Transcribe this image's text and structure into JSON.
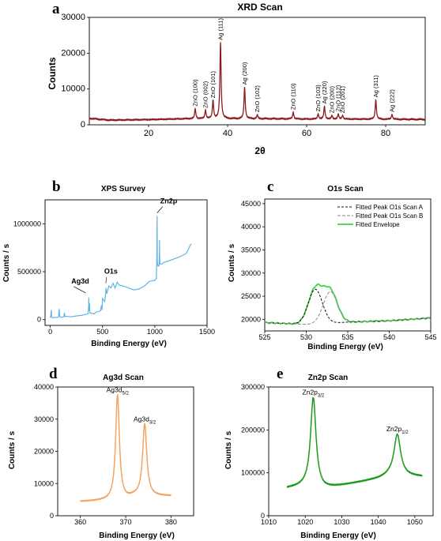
{
  "chart_data": [
    {
      "id": "xrd",
      "panel_letter": "a",
      "type": "line",
      "title": "XRD Scan",
      "xlabel": "2θ",
      "ylabel": "Counts",
      "xlim": [
        5,
        90
      ],
      "ylim": [
        0,
        30000
      ],
      "xticks": [
        20,
        40,
        60,
        80
      ],
      "yticks": [
        0,
        10000,
        20000,
        30000
      ],
      "color": "#8b1a1a",
      "baseline": {
        "x": [
          5,
          10,
          20,
          30,
          40,
          50,
          60,
          70,
          80,
          90
        ],
        "y": [
          1800,
          1300,
          1450,
          1700,
          1700,
          1700,
          1600,
          1600,
          1550,
          1500
        ]
      },
      "peaks": [
        {
          "x": 31.8,
          "y": 4500,
          "label": "ZnO (100)"
        },
        {
          "x": 34.4,
          "y": 4000,
          "label": "ZnO (002)"
        },
        {
          "x": 36.3,
          "y": 6800,
          "label": "ZnO (101)"
        },
        {
          "x": 38.2,
          "y": 23000,
          "label": "Ag (111)"
        },
        {
          "x": 44.3,
          "y": 10500,
          "label": "Ag (200)"
        },
        {
          "x": 47.5,
          "y": 2800,
          "label": "ZnO (102)"
        },
        {
          "x": 56.6,
          "y": 3500,
          "label": "ZnO (110)"
        },
        {
          "x": 62.9,
          "y": 3000,
          "label": "ZnO (103)"
        },
        {
          "x": 64.5,
          "y": 5200,
          "label": "Ag (220)"
        },
        {
          "x": 66.4,
          "y": 2600,
          "label": "ZnO (200)"
        },
        {
          "x": 68.0,
          "y": 3000,
          "label": "ZnO (112)"
        },
        {
          "x": 69.1,
          "y": 2600,
          "label": "ZnO (201)"
        },
        {
          "x": 77.5,
          "y": 7000,
          "label": "Ag (311)"
        },
        {
          "x": 81.6,
          "y": 2900,
          "label": "Ag (222)"
        }
      ]
    },
    {
      "id": "xps",
      "panel_letter": "b",
      "type": "line",
      "title": "XPS Survey",
      "xlabel": "Binding Energy (eV)",
      "ylabel": "Counts / s",
      "xlim": [
        -50,
        1500
      ],
      "ylim": [
        -60000,
        1250000
      ],
      "xticks": [
        0,
        500,
        1000,
        1500
      ],
      "yticks": [
        0,
        500000,
        1000000
      ],
      "color": "#5fb4e6",
      "points": {
        "x": [
          0,
          5,
          10,
          12,
          14,
          20,
          80,
          85,
          90,
          100,
          130,
          135,
          140,
          200,
          260,
          300,
          360,
          367,
          368,
          370,
          374,
          375,
          378,
          420,
          440,
          480,
          490,
          495,
          500,
          520,
          531,
          533,
          540,
          560,
          580,
          600,
          620,
          640,
          660,
          700,
          750,
          800,
          850,
          900,
          950,
          1000,
          1015,
          1020,
          1022,
          1024,
          1030,
          1040,
          1044,
          1045,
          1047,
          1050,
          1070,
          1090,
          1100,
          1150,
          1200,
          1250,
          1300,
          1320,
          1340,
          1350
        ],
        "y": [
          20000,
          40000,
          100000,
          50000,
          20000,
          20000,
          25000,
          110000,
          40000,
          25000,
          30000,
          70000,
          35000,
          30000,
          40000,
          45000,
          60000,
          130000,
          230000,
          120000,
          90000,
          170000,
          70000,
          60000,
          80000,
          90000,
          150000,
          100000,
          220000,
          190000,
          280000,
          330000,
          270000,
          350000,
          330000,
          380000,
          330000,
          390000,
          360000,
          350000,
          330000,
          310000,
          320000,
          350000,
          400000,
          410000,
          430000,
          700000,
          1080000,
          600000,
          560000,
          560000,
          680000,
          830000,
          620000,
          580000,
          580000,
          600000,
          600000,
          620000,
          640000,
          660000,
          690000,
          730000,
          780000,
          790000
        ]
      },
      "annotations": [
        {
          "text": "Zn2p",
          "x": 1022,
          "y": 1080000
        },
        {
          "text": "O1s",
          "x": 531,
          "y": 330000
        },
        {
          "text": "Ag3d",
          "x": 368,
          "y": 230000
        }
      ]
    },
    {
      "id": "o1s",
      "panel_letter": "c",
      "type": "line",
      "title": "O1s Scan",
      "xlabel": "Binding Energy (eV)",
      "ylabel": "Counts / s",
      "xlim": [
        525,
        545
      ],
      "ylim": [
        17500,
        46000
      ],
      "xticks": [
        525,
        530,
        535,
        540,
        545
      ],
      "yticks": [
        20000,
        25000,
        30000,
        35000,
        40000,
        45000
      ],
      "background": {
        "x": [
          525,
          530,
          535,
          540,
          545
        ],
        "y": [
          19300,
          18900,
          19400,
          19700,
          20300
        ]
      },
      "series": [
        {
          "name": "Fitted Peak O1s Scan A",
          "color": "#111111",
          "dash": "3,2",
          "peak": {
            "center": 531.1,
            "height": 26500,
            "sigma": 0.85
          }
        },
        {
          "name": "Fitted Peak O1s Scan B",
          "color": "#888888",
          "dash": "4,2",
          "peak": {
            "center": 532.9,
            "height": 6800,
            "sigma": 0.85
          }
        },
        {
          "name": "Fitted Envelope",
          "color": "#3fd63f",
          "dash": "",
          "peak": null
        }
      ]
    },
    {
      "id": "ag3d",
      "panel_letter": "d",
      "type": "line",
      "title": "Ag3d Scan",
      "xlabel": "Binding Energy (eV)",
      "ylabel": "Counts / s",
      "xlim": [
        355,
        385
      ],
      "ylim": [
        0,
        40000
      ],
      "xticks": [
        360,
        370,
        380
      ],
      "yticks": [
        0,
        10000,
        20000,
        30000,
        40000
      ],
      "color": "#f4a460",
      "range": [
        360,
        380
      ],
      "baseline": {
        "x": [
          360,
          366,
          370,
          372,
          380
        ],
        "y": [
          4400,
          4700,
          5000,
          5900,
          6100
        ]
      },
      "peaks": [
        {
          "center": 368.2,
          "height": 32600,
          "width": 0.5
        },
        {
          "center": 374.2,
          "height": 22400,
          "width": 0.55
        }
      ],
      "annotations": [
        {
          "text": "Ag3d",
          "sub": "5/2",
          "x": 368.2
        },
        {
          "text": "Ag3d",
          "sub": "3/2",
          "x": 374.2
        }
      ]
    },
    {
      "id": "zn2p",
      "panel_letter": "e",
      "type": "line",
      "title": "Zn2p Scan",
      "xlabel": "Binding Energy (eV)",
      "ylabel": "Counts / s",
      "xlim": [
        1010,
        1055
      ],
      "ylim": [
        0,
        300000
      ],
      "xticks": [
        1010,
        1020,
        1030,
        1040,
        1050
      ],
      "yticks": [
        0,
        100000,
        200000,
        300000
      ],
      "color": "#1a9a1a",
      "range": [
        1015,
        1052
      ],
      "baseline": {
        "x": [
          1015,
          1020,
          1025,
          1030,
          1035,
          1040,
          1043,
          1048,
          1052
        ],
        "y": [
          64000,
          68000,
          62000,
          70000,
          78000,
          86000,
          93000,
          92000,
          91000
        ]
      },
      "peaks": [
        {
          "center": 1022.2,
          "height": 210000,
          "width": 0.9
        },
        {
          "center": 1045.2,
          "height": 97000,
          "width": 1.1
        }
      ],
      "annotations": [
        {
          "text": "Zn2p",
          "sub": "3/2",
          "x": 1022.2
        },
        {
          "text": "Zn2p",
          "sub": "1/2",
          "x": 1045.2
        }
      ]
    }
  ]
}
